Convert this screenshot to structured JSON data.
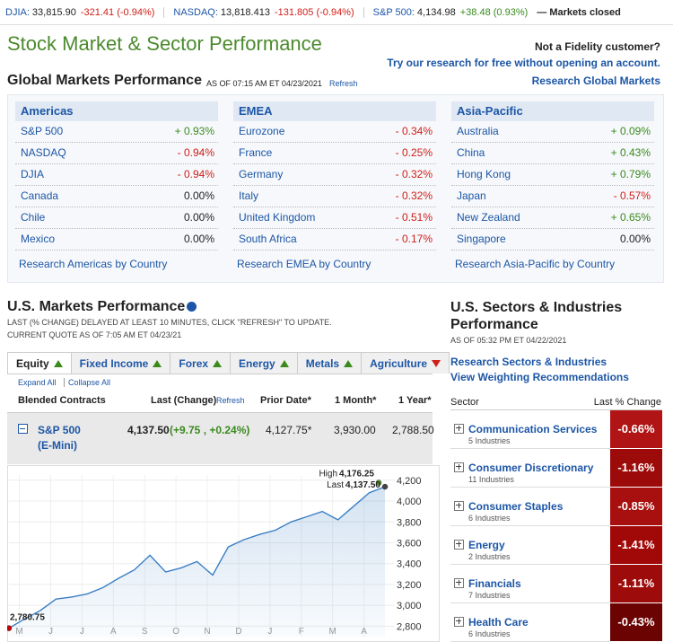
{
  "ticker": {
    "items": [
      {
        "name": "DJIA:",
        "value": "33,815.90",
        "change": "-321.41 (-0.94%)"
      },
      {
        "name": "NASDAQ:",
        "value": "13,818.413",
        "change": "-131.805 (-0.94%)"
      },
      {
        "name": "S&P 500:",
        "value": "4,134.98",
        "change": "+38.48 (0.93%)"
      }
    ],
    "status": "— Markets closed"
  },
  "header": {
    "title": "Stock Market & Sector Performance",
    "prompt": "Not a Fidelity customer?",
    "trial_link": "Try our research for free without opening an account.",
    "research_link": "Research Global Markets"
  },
  "global": {
    "title": "Global Markets Performance",
    "as_of": "AS OF 07:15 AM ET 04/23/2021",
    "refresh": "Refresh",
    "regions": [
      {
        "name": "Americas",
        "rows": [
          [
            "S&P 500",
            "+ 0.93%"
          ],
          [
            "NASDAQ",
            "- 0.94%"
          ],
          [
            "DJIA",
            "- 0.94%"
          ],
          [
            "Canada",
            "0.00%"
          ],
          [
            "Chile",
            "0.00%"
          ],
          [
            "Mexico",
            "0.00%"
          ]
        ],
        "link": "Research Americas by Country"
      },
      {
        "name": "EMEA",
        "rows": [
          [
            "Eurozone",
            "- 0.34%"
          ],
          [
            "France",
            "- 0.25%"
          ],
          [
            "Germany",
            "- 0.32%"
          ],
          [
            "Italy",
            "- 0.32%"
          ],
          [
            "United Kingdom",
            "- 0.51%"
          ],
          [
            "South Africa",
            "- 0.17%"
          ]
        ],
        "link": "Research EMEA by Country"
      },
      {
        "name": "Asia-Pacific",
        "rows": [
          [
            "Australia",
            "+ 0.09%"
          ],
          [
            "China",
            "+ 0.43%"
          ],
          [
            "Hong Kong",
            "+ 0.79%"
          ],
          [
            "Japan",
            "- 0.57%"
          ],
          [
            "New Zealand",
            "+ 0.65%"
          ],
          [
            "Singapore",
            "0.00%"
          ]
        ],
        "link": "Research Asia-Pacific by Country"
      }
    ]
  },
  "us_markets": {
    "title": "U.S. Markets Performance",
    "note": [
      "LAST (% CHANGE) DELAYED AT LEAST 10 MINUTES, CLICK \"REFRESH\" TO UPDATE.",
      "CURRENT QUOTE AS OF 7:05 AM ET 04/23/21"
    ],
    "tabs": [
      {
        "label": "Equity",
        "direction": "up"
      },
      {
        "label": "Fixed Income",
        "direction": "up"
      },
      {
        "label": "Forex",
        "direction": "up"
      },
      {
        "label": "Energy",
        "direction": "up"
      },
      {
        "label": "Metals",
        "direction": "up"
      },
      {
        "label": "Agriculture",
        "direction": "down"
      }
    ],
    "expand": "Expand All",
    "collapse": "Collapse All",
    "columns": [
      "Blended Contracts",
      "Last (Change)",
      "Prior Date*",
      "1 Month*",
      "1 Year*"
    ],
    "refresh": "Refresh",
    "row": {
      "name": "S&P 500",
      "sub": "(E-Mini)",
      "last": "4,137.50",
      "change": "(+9.75 , +0.24%)",
      "prior": "4,127.75*",
      "month": "3,930.00",
      "year": "2,788.50"
    }
  },
  "chart_data": {
    "type": "line",
    "x": [
      0,
      0.5,
      1,
      1.5,
      2,
      2.5,
      3,
      3.5,
      4,
      4.5,
      5,
      5.5,
      6,
      6.5,
      7,
      7.5,
      8,
      8.5,
      9,
      9.5,
      10,
      10.5,
      11,
      11.5,
      12
    ],
    "values": [
      2780.75,
      2870,
      2950,
      3060,
      3080,
      3110,
      3170,
      3260,
      3340,
      3480,
      3320,
      3360,
      3420,
      3290,
      3560,
      3630,
      3680,
      3720,
      3800,
      3850,
      3900,
      3820,
      3950,
      4080,
      4137.5
    ],
    "color": "#3b7fc4",
    "xlim": [
      0,
      12.2
    ],
    "xticks": [
      {
        "value": 0.33,
        "label": "M"
      },
      {
        "value": 1.33,
        "label": "J"
      },
      {
        "value": 2.33,
        "label": "J"
      },
      {
        "value": 3.33,
        "label": "A"
      },
      {
        "value": 4.33,
        "label": "S"
      },
      {
        "value": 5.33,
        "label": "O"
      },
      {
        "value": 6.33,
        "label": "N"
      },
      {
        "value": 7.33,
        "label": "D"
      },
      {
        "value": 8.33,
        "label": "J"
      },
      {
        "value": 9.33,
        "label": "F"
      },
      {
        "value": 10.33,
        "label": "M"
      },
      {
        "value": 11.33,
        "label": "A"
      }
    ],
    "ylim": [
      2700,
      4250
    ],
    "yticks": [
      {
        "value": 2800,
        "label": "2,800"
      },
      {
        "value": 3000,
        "label": "3,000"
      },
      {
        "value": 3200,
        "label": "3,200"
      },
      {
        "value": 3400,
        "label": "3,400"
      },
      {
        "value": 3600,
        "label": "3,600"
      },
      {
        "value": 3800,
        "label": "3,800"
      },
      {
        "value": 4000,
        "label": "4,000"
      },
      {
        "value": 4200,
        "label": "4,200"
      }
    ],
    "grid": true,
    "annotations": [
      {
        "label": "High",
        "x": 11.8,
        "value": 4176.25,
        "value_label": "4,176.25",
        "color": "#5aa02c"
      },
      {
        "label": "Last",
        "x": 12,
        "value": 4137.5,
        "value_label": "4,137.50",
        "color": "#444444"
      },
      {
        "x": 0,
        "value": 2780.75,
        "value_label": "2,780.75",
        "color": "#cc0000"
      }
    ]
  },
  "sectors": {
    "title": "U.S. Sectors & Industries Performance",
    "as_of": "AS OF 05:32 PM ET 04/22/2021",
    "links": [
      "Research Sectors & Industries",
      "View Weighting Recommendations"
    ],
    "columns": [
      "Sector",
      "Last % Change"
    ],
    "rows": [
      {
        "name": "Communication Services",
        "sub": "5 Industries",
        "value": "-0.66%",
        "color": "#b01414"
      },
      {
        "name": "Consumer Discretionary",
        "sub": "11 Industries",
        "value": "-1.16%",
        "color": "#9c0a0a"
      },
      {
        "name": "Consumer Staples",
        "sub": "6 Industries",
        "value": "-0.85%",
        "color": "#a80f0f"
      },
      {
        "name": "Energy",
        "sub": "2 Industries",
        "value": "-1.41%",
        "color": "#a10808"
      },
      {
        "name": "Financials",
        "sub": "7 Industries",
        "value": "-1.11%",
        "color": "#9e0b0b"
      },
      {
        "name": "Health Care",
        "sub": "6 Industries",
        "value": "-0.43%",
        "color": "#6b0303"
      }
    ]
  }
}
